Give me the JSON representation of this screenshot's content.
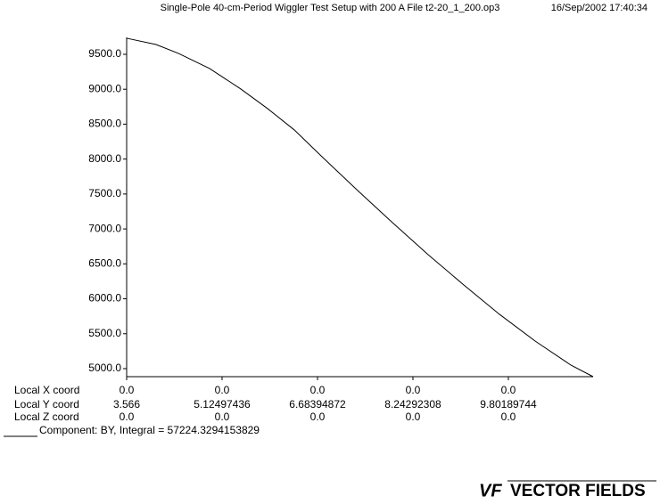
{
  "chart_data": {
    "type": "line",
    "title": "Single-Pole 40-cm-Period Wiggler Test Setup with 200 A  File t2-20_1_200.op3",
    "timestamp": "16/Sep/2002 17:40:34",
    "x": [
      3.566,
      4.047,
      4.411,
      4.921,
      5.431,
      5.868,
      6.305,
      6.742,
      7.325,
      7.908,
      8.491,
      9.073,
      9.656,
      10.239,
      10.822,
      11.186
    ],
    "series": [
      {
        "name": "Component:  BY, Integral = 57224.3294153829",
        "color": "#000000",
        "values": [
          9730,
          9640,
          9513,
          9296,
          9003,
          8723,
          8417,
          8047,
          7562,
          7091,
          6632,
          6198,
          5778,
          5395,
          5051,
          4885
        ]
      }
    ],
    "xlim": [
      3.566,
      11.186
    ],
    "xticks": [
      3.566,
      5.12497436,
      6.68394872,
      8.24292308,
      9.80189744
    ],
    "ylim": [
      4885,
      9742
    ],
    "yticks": [
      {
        "value": 5000,
        "label": "5000.0"
      },
      {
        "value": 5500,
        "label": "5500.0"
      },
      {
        "value": 6000,
        "label": "6000.0"
      },
      {
        "value": 6500,
        "label": "6500.0"
      },
      {
        "value": 7000,
        "label": "7000.0"
      },
      {
        "value": 7500,
        "label": "7500.0"
      },
      {
        "value": 8000,
        "label": "8000.0"
      },
      {
        "value": 8500,
        "label": "8500.0"
      },
      {
        "value": 9000,
        "label": "9000.0"
      },
      {
        "value": 9500,
        "label": "9500.0"
      }
    ],
    "x_coord_label": "Local X coord",
    "y_coord_label": "Local Y coord",
    "z_coord_label": "Local Z coord",
    "x_coord_values": [
      "0.0",
      "0.0",
      "0.0",
      "0.0",
      "0.0"
    ],
    "z_coord_values": [
      "0.0",
      "0.0",
      "0.0",
      "0.0",
      "0.0"
    ],
    "logo_mark": "VF",
    "logo_text": "VECTOR FIELDS"
  }
}
